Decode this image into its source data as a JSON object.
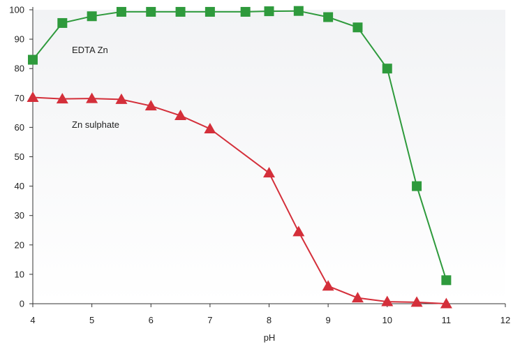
{
  "chart_data": {
    "type": "line",
    "title": "",
    "xlabel": "pH",
    "ylabel": "",
    "xlim": [
      4,
      12
    ],
    "ylim": [
      0,
      100
    ],
    "x_ticks": [
      4,
      5,
      6,
      7,
      8,
      9,
      10,
      11,
      12
    ],
    "y_ticks": [
      0,
      10,
      20,
      30,
      40,
      50,
      60,
      70,
      80,
      90,
      100
    ],
    "grid": false,
    "background": "gradient light grey",
    "series": [
      {
        "name": "EDTA Zn",
        "marker": "square",
        "color": "#2e9a3c",
        "x": [
          4,
          4.5,
          5,
          5.5,
          6,
          6.5,
          7,
          7.6,
          8,
          8.5,
          9,
          9.5,
          10,
          10.5,
          11
        ],
        "y": [
          83,
          95.5,
          97.8,
          99.3,
          99.3,
          99.3,
          99.3,
          99.3,
          99.5,
          99.6,
          97.5,
          94,
          80,
          40,
          8
        ]
      },
      {
        "name": "Zn sulphate",
        "marker": "triangle",
        "color": "#d42f3a",
        "x": [
          4,
          4.5,
          5,
          5.5,
          6,
          6.5,
          7,
          8,
          8.5,
          9,
          9.5,
          10,
          10.5,
          11
        ],
        "y": [
          70.2,
          69.7,
          69.8,
          69.5,
          67.3,
          64,
          59.5,
          44.5,
          24.5,
          6,
          2,
          0.7,
          0.5,
          0
        ]
      }
    ]
  }
}
